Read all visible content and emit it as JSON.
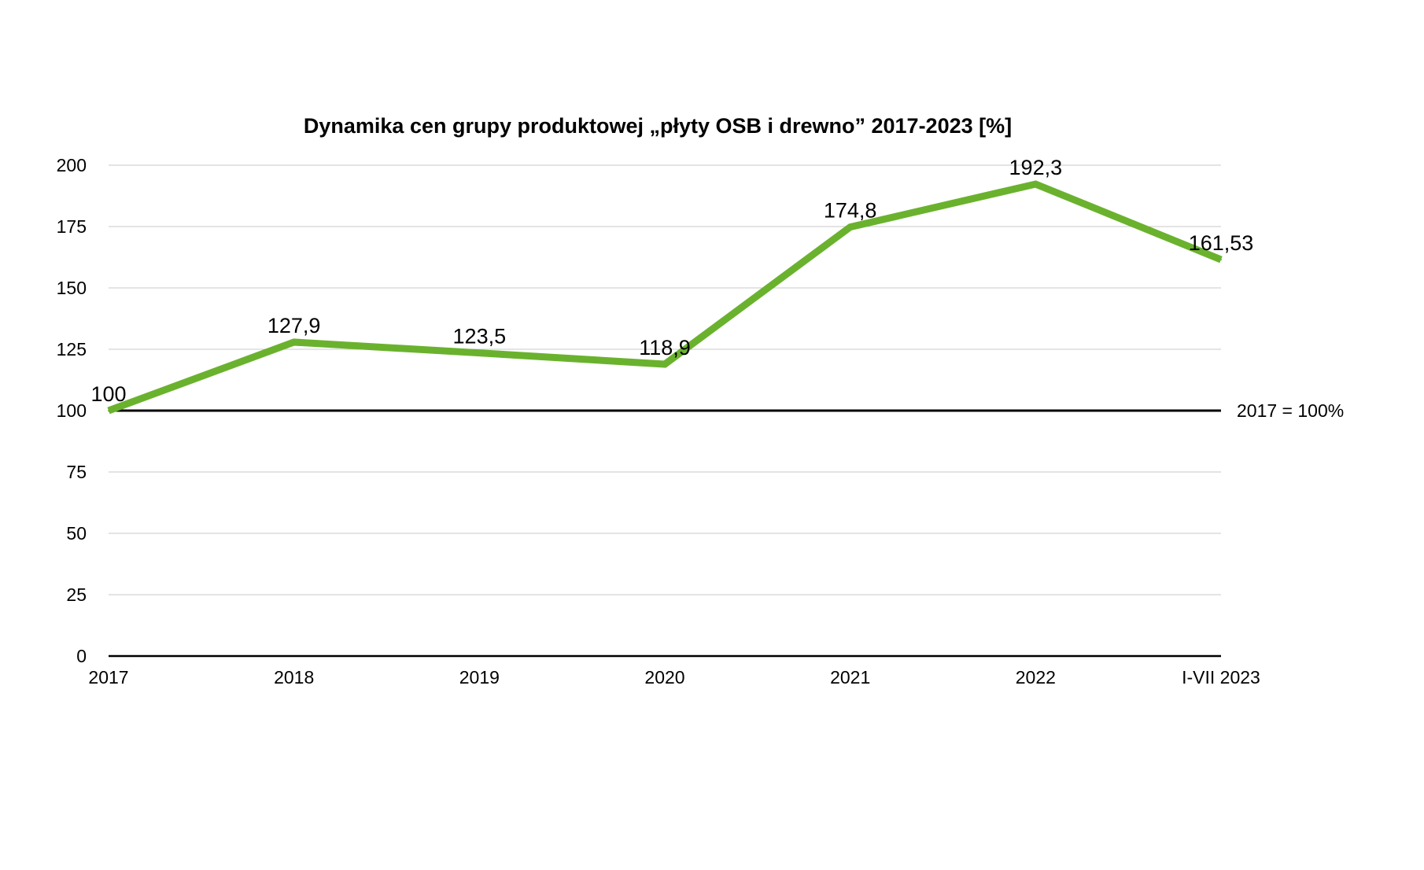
{
  "chart_data": {
    "type": "line",
    "title": "Dynamika cen grupy produktowej „płyty OSB i drewno” 2017-2023 [%]",
    "xlabel": "",
    "ylabel": "",
    "categories": [
      "2017",
      "2018",
      "2019",
      "2020",
      "2021",
      "2022",
      "I-VII 2023"
    ],
    "series": [
      {
        "values": [
          100,
          127.9,
          123.5,
          118.9,
          174.8,
          192.3,
          161.53
        ],
        "labels": [
          "100",
          "127,9",
          "123,5",
          "118,9",
          "174,8",
          "192,3",
          "161,53"
        ],
        "color": "#6ab22e"
      }
    ],
    "yticks": [
      "0",
      "25",
      "50",
      "75",
      "100",
      "125",
      "150",
      "175",
      "200"
    ],
    "ylim": [
      0,
      200
    ],
    "grid": true,
    "legend": "none",
    "reference_line": {
      "value": 100,
      "label": "2017 = 100%",
      "color": "#000000"
    }
  }
}
